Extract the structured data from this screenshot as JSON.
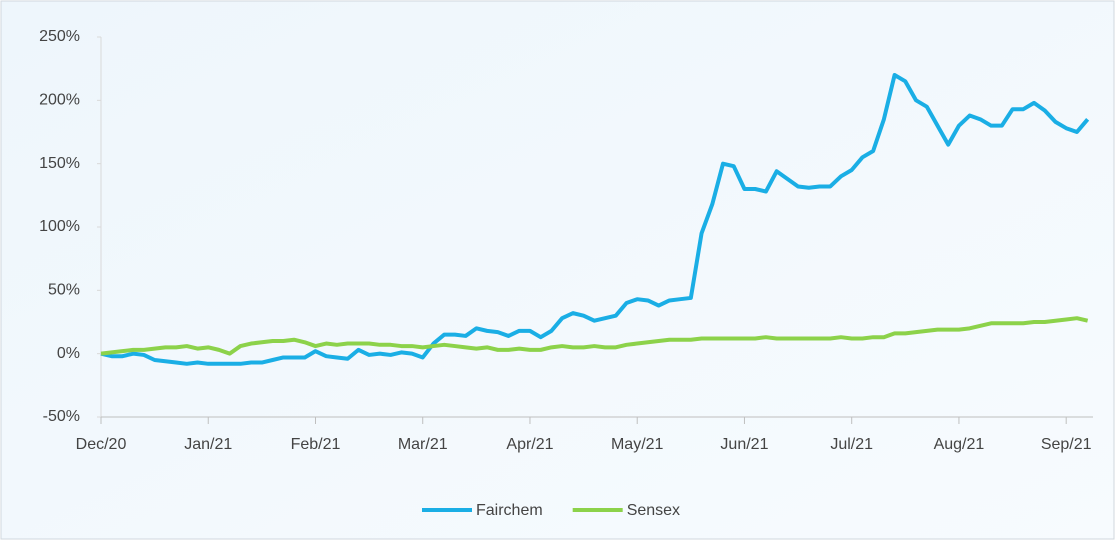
{
  "chart_data": {
    "type": "line",
    "x": [
      0,
      0.1,
      0.2,
      0.3,
      0.4,
      0.5,
      0.6,
      0.7,
      0.8,
      0.9,
      1,
      1.1,
      1.2,
      1.3,
      1.4,
      1.5,
      1.6,
      1.7,
      1.8,
      1.9,
      2,
      2.1,
      2.2,
      2.3,
      2.4,
      2.5,
      2.6,
      2.7,
      2.8,
      2.9,
      3,
      3.1,
      3.2,
      3.3,
      3.4,
      3.5,
      3.6,
      3.7,
      3.8,
      3.9,
      4,
      4.1,
      4.2,
      4.3,
      4.4,
      4.5,
      4.6,
      4.7,
      4.8,
      4.9,
      5,
      5.1,
      5.2,
      5.3,
      5.4,
      5.5,
      5.6,
      5.7,
      5.8,
      5.9,
      6,
      6.1,
      6.2,
      6.3,
      6.4,
      6.5,
      6.6,
      6.7,
      6.8,
      6.9,
      7,
      7.1,
      7.2,
      7.3,
      7.4,
      7.5,
      7.6,
      7.7,
      7.8,
      7.9,
      8,
      8.1,
      8.2,
      8.3,
      8.4,
      8.5,
      8.6,
      8.7,
      8.8,
      8.9,
      9,
      9.1,
      9.2
    ],
    "series": [
      {
        "name": "Fairchem",
        "color": "#1aaee5",
        "values": [
          0,
          -2,
          -2,
          0,
          -1,
          -5,
          -6,
          -7,
          -8,
          -7,
          -8,
          -8,
          -8,
          -8,
          -7,
          -7,
          -5,
          -3,
          -3,
          -3,
          2,
          -2,
          -3,
          -4,
          3,
          -1,
          0,
          -1,
          1,
          0,
          -3,
          8,
          15,
          15,
          14,
          20,
          18,
          17,
          14,
          18,
          18,
          13,
          18,
          28,
          32,
          30,
          26,
          28,
          30,
          40,
          43,
          42,
          38,
          42,
          43,
          44,
          95,
          118,
          150,
          148,
          130,
          130,
          128,
          144,
          138,
          132,
          131,
          132,
          132,
          140,
          145,
          155,
          160,
          185,
          220,
          215,
          200,
          195,
          180,
          165,
          180,
          188,
          185,
          180,
          180,
          193,
          193,
          198,
          192,
          183,
          178,
          175,
          185
        ]
      },
      {
        "name": "Sensex",
        "color": "#8cd24a",
        "values": [
          0,
          1,
          2,
          3,
          3,
          4,
          5,
          5,
          6,
          4,
          5,
          3,
          0,
          6,
          8,
          9,
          10,
          10,
          11,
          9,
          6,
          8,
          7,
          8,
          8,
          8,
          7,
          7,
          6,
          6,
          5,
          6,
          7,
          6,
          5,
          4,
          5,
          3,
          3,
          4,
          3,
          3,
          5,
          6,
          5,
          5,
          6,
          5,
          5,
          7,
          8,
          9,
          10,
          11,
          11,
          11,
          12,
          12,
          12,
          12,
          12,
          12,
          13,
          12,
          12,
          12,
          12,
          12,
          12,
          13,
          12,
          12,
          13,
          13,
          16,
          16,
          17,
          18,
          19,
          19,
          19,
          20,
          22,
          24,
          24,
          24,
          24,
          25,
          25,
          26,
          27,
          28,
          26
        ]
      }
    ],
    "xlim": [
      0,
      9.25
    ],
    "xticks": [
      {
        "value": 0,
        "label": "Dec/20"
      },
      {
        "value": 1,
        "label": "Jan/21"
      },
      {
        "value": 2,
        "label": "Feb/21"
      },
      {
        "value": 3,
        "label": "Mar/21"
      },
      {
        "value": 4,
        "label": "Apr/21"
      },
      {
        "value": 5,
        "label": "May/21"
      },
      {
        "value": 6,
        "label": "Jun/21"
      },
      {
        "value": 7,
        "label": "Jul/21"
      },
      {
        "value": 8,
        "label": "Aug/21"
      },
      {
        "value": 9,
        "label": "Sep/21"
      }
    ],
    "ylim": [
      -50,
      250
    ],
    "yticks": [
      {
        "value": -50,
        "label": "-50%"
      },
      {
        "value": 0,
        "label": "0%"
      },
      {
        "value": 50,
        "label": "50%"
      },
      {
        "value": 100,
        "label": "100%"
      },
      {
        "value": 150,
        "label": "150%"
      },
      {
        "value": 200,
        "label": "200%"
      },
      {
        "value": 250,
        "label": "250%"
      }
    ],
    "legend": "bottom"
  }
}
